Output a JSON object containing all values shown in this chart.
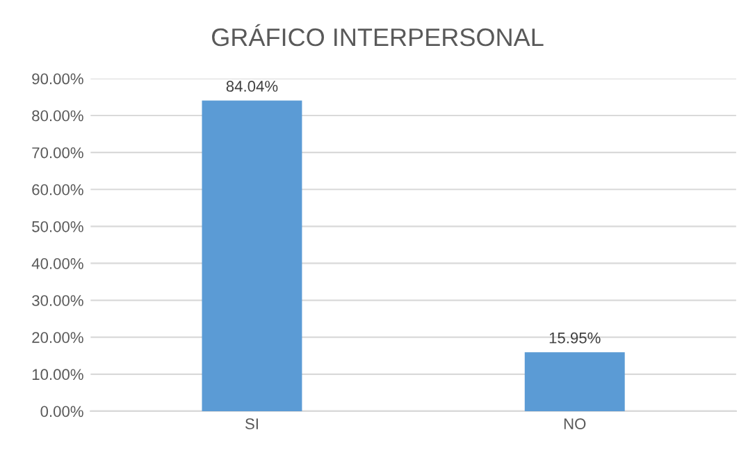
{
  "chart_data": {
    "type": "bar",
    "title": "GRÁFICO INTERPERSONAL",
    "categories": [
      "SI",
      "NO"
    ],
    "values": [
      84.04,
      15.95
    ],
    "value_labels": [
      "84.04%",
      "15.95%"
    ],
    "color": "#5b9bd5",
    "ylim": [
      0,
      90
    ],
    "yticks": [
      {
        "value": 0,
        "label": "0.00%"
      },
      {
        "value": 10,
        "label": "10.00%"
      },
      {
        "value": 20,
        "label": "20.00%"
      },
      {
        "value": 30,
        "label": "30.00%"
      },
      {
        "value": 40,
        "label": "40.00%"
      },
      {
        "value": 50,
        "label": "50.00%"
      },
      {
        "value": 60,
        "label": "60.00%"
      },
      {
        "value": 70,
        "label": "70.00%"
      },
      {
        "value": 80,
        "label": "80.00%"
      },
      {
        "value": 90,
        "label": "90.00%"
      }
    ],
    "grid": "y"
  }
}
